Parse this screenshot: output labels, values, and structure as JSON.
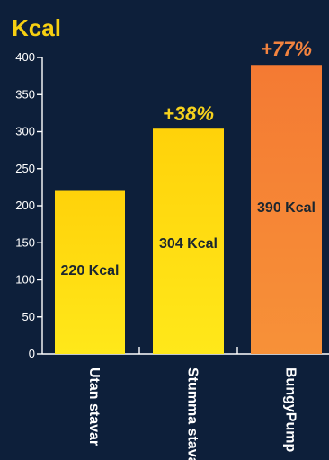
{
  "chart_data": {
    "type": "bar",
    "title": "Kcal",
    "categories": [
      "Utan stavar",
      "Stumma stavar",
      "BungyPump"
    ],
    "values": [
      220,
      304,
      390
    ],
    "value_labels": [
      "220 Kcal",
      "304 Kcal",
      "390 Kcal"
    ],
    "annotations": [
      "",
      "+38%",
      "+77%"
    ],
    "ylim": [
      0,
      400
    ],
    "yticks": [
      0,
      50,
      100,
      150,
      200,
      250,
      300,
      350,
      400
    ],
    "grid": false,
    "colors": {
      "background": "#0d1f3a",
      "title": "#f6cf12",
      "axis": "#ffffff",
      "tick_text": "#ffffff",
      "bar_yellow_top": "#ffd20a",
      "bar_yellow_bottom": "#ffe81a",
      "bar_orange_top": "#f47a33",
      "bar_orange_bottom": "#f79138",
      "label_yellow": "#f6d21d",
      "label_orange": "#f2833f",
      "label_text_on_bar": "#1a2630"
    }
  }
}
